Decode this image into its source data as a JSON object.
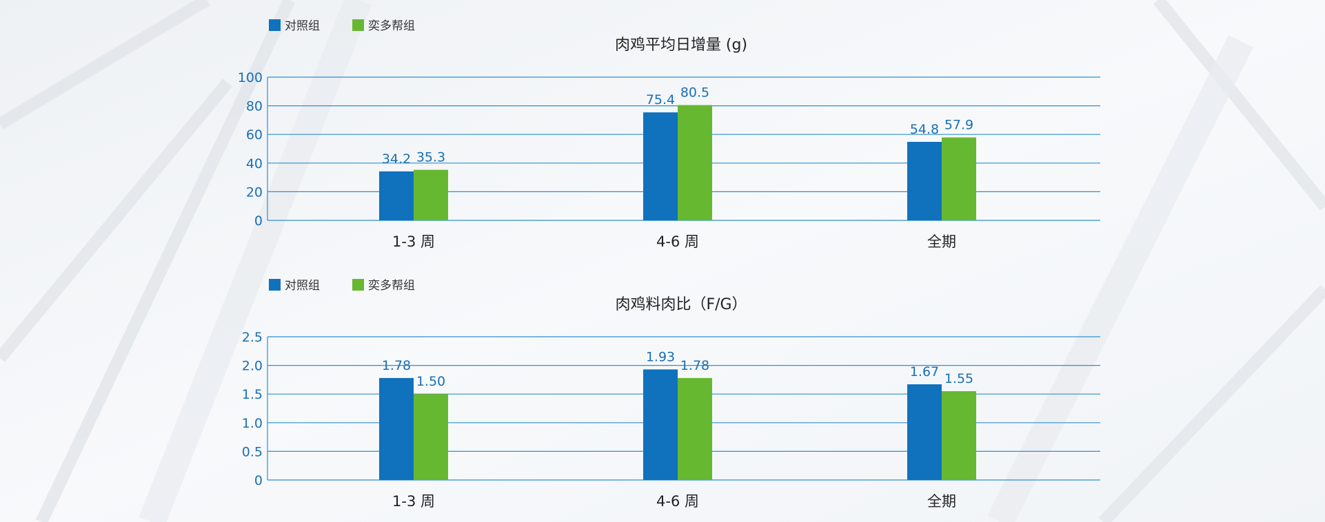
{
  "legend": {
    "series_a": "对照组",
    "series_b": "奕多帮组"
  },
  "colors": {
    "series_a": "#1071bd",
    "series_b": "#67b831",
    "grid": "#2f8fd0",
    "tick": "#1a6fb5"
  },
  "chart_data": [
    {
      "type": "bar",
      "title": "肉鸡平均日增量 (g)",
      "categories": [
        "1-3 周",
        "4-6 周",
        "全期"
      ],
      "series": [
        {
          "name": "对照组",
          "values": [
            34.2,
            75.4,
            54.8
          ],
          "labels": [
            "34.2",
            "75.4",
            "54.8"
          ]
        },
        {
          "name": "奕多帮组",
          "values": [
            35.3,
            80.5,
            57.9
          ],
          "labels": [
            "35.3",
            "80.5",
            "57.9"
          ]
        }
      ],
      "yticks": [
        "0",
        "20",
        "40",
        "60",
        "80",
        "100"
      ],
      "ylim": [
        0,
        100
      ],
      "grid": true,
      "legend_position": "top-left"
    },
    {
      "type": "bar",
      "title": "肉鸡料肉比（F/G）",
      "categories": [
        "1-3 周",
        "4-6 周",
        "全期"
      ],
      "series": [
        {
          "name": "对照组",
          "values": [
            1.78,
            1.93,
            1.67
          ],
          "labels": [
            "1.78",
            "1.93",
            "1.67"
          ]
        },
        {
          "name": "奕多帮组",
          "values": [
            1.5,
            1.78,
            1.55
          ],
          "labels": [
            "1.50",
            "1.78",
            "1.55"
          ]
        }
      ],
      "yticks": [
        "0",
        "0.5",
        "1.0",
        "1.5",
        "2.0",
        "2.5"
      ],
      "ylim": [
        0,
        2.5
      ],
      "grid": true,
      "legend_position": "top-left"
    }
  ]
}
